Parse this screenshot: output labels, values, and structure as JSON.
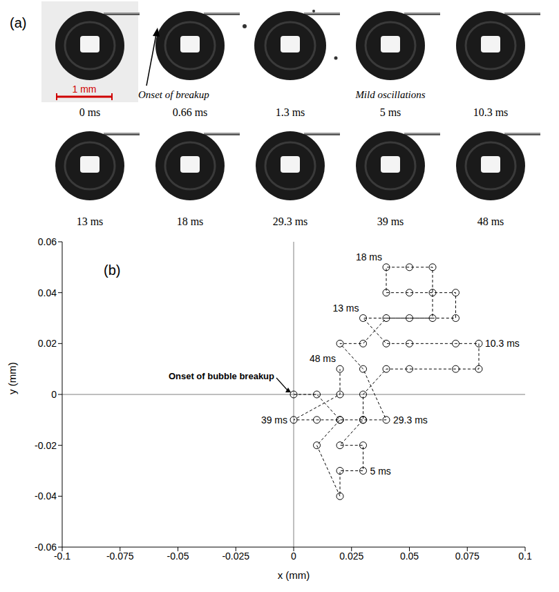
{
  "chart_data": {
    "type": "scatter",
    "title": "(b)",
    "x_label": "x (mm)",
    "y_label": "y (mm)",
    "x": [
      0,
      0.01,
      0.02,
      0.01,
      0.02,
      0.02,
      0.03,
      0.03,
      0.02,
      0.03,
      0.03,
      0.04,
      0.05,
      0.07,
      0.08,
      0.08,
      0.07,
      0.05,
      0.04,
      0.03,
      0.05,
      0.07,
      0.07,
      0.06,
      0.05,
      0.04,
      0.04,
      0.05,
      0.06,
      0.06,
      0.04,
      0.03,
      0.02,
      0.03,
      0.04,
      0.03,
      0.02,
      0.01,
      0,
      0.02,
      0.02
    ],
    "values": [
      0,
      0,
      -0.01,
      -0.02,
      -0.04,
      -0.03,
      -0.03,
      -0.02,
      -0.02,
      -0.01,
      0,
      0.01,
      0.01,
      0.01,
      0.01,
      0.02,
      0.02,
      0.02,
      0.02,
      0.03,
      0.03,
      0.03,
      0.04,
      0.04,
      0.04,
      0.04,
      0.05,
      0.05,
      0.05,
      0.03,
      0.03,
      0.02,
      0.02,
      0.01,
      -0.01,
      -0.01,
      -0.01,
      -0.01,
      -0.01,
      0,
      0.01
    ],
    "color": "#000000",
    "marker": "open_circle",
    "line_style": "dashed",
    "xlim": [
      -0.1,
      0.1
    ],
    "xticks": [
      -0.1,
      -0.075,
      -0.05,
      -0.025,
      0,
      0.025,
      0.05,
      0.075,
      0.1
    ],
    "ylim": [
      -0.06,
      0.06
    ],
    "yticks": [
      -0.06,
      -0.04,
      -0.02,
      0,
      0.02,
      0.04,
      0.06
    ],
    "grid": false,
    "annotations": [
      {
        "text": "Onset of bubble breakup",
        "x": 0,
        "y": 0
      },
      {
        "text": "5 ms",
        "x": 0.03,
        "y": -0.03
      },
      {
        "text": "10.3 ms",
        "x": 0.08,
        "y": 0.02
      },
      {
        "text": "13 ms",
        "x": 0.03,
        "y": 0.03
      },
      {
        "text": "18 ms",
        "x": 0.04,
        "y": 0.05
      },
      {
        "text": "29.3 ms",
        "x": 0.04,
        "y": -0.01
      },
      {
        "text": "39 ms",
        "x": 0,
        "y": -0.01
      },
      {
        "text": "48 ms",
        "x": 0.02,
        "y": 0.01
      }
    ]
  },
  "figure": {
    "panel_label": "(a)",
    "frames": [
      "0 ms",
      "0.66 ms",
      "1.3 ms",
      "5 ms",
      "10.3 ms",
      "13 ms",
      "18 ms",
      "29.3 ms",
      "39 ms",
      "48 ms"
    ],
    "scale_bar": "1 mm",
    "annotations": [
      "Onset of breakup",
      "Mild oscillations"
    ]
  }
}
